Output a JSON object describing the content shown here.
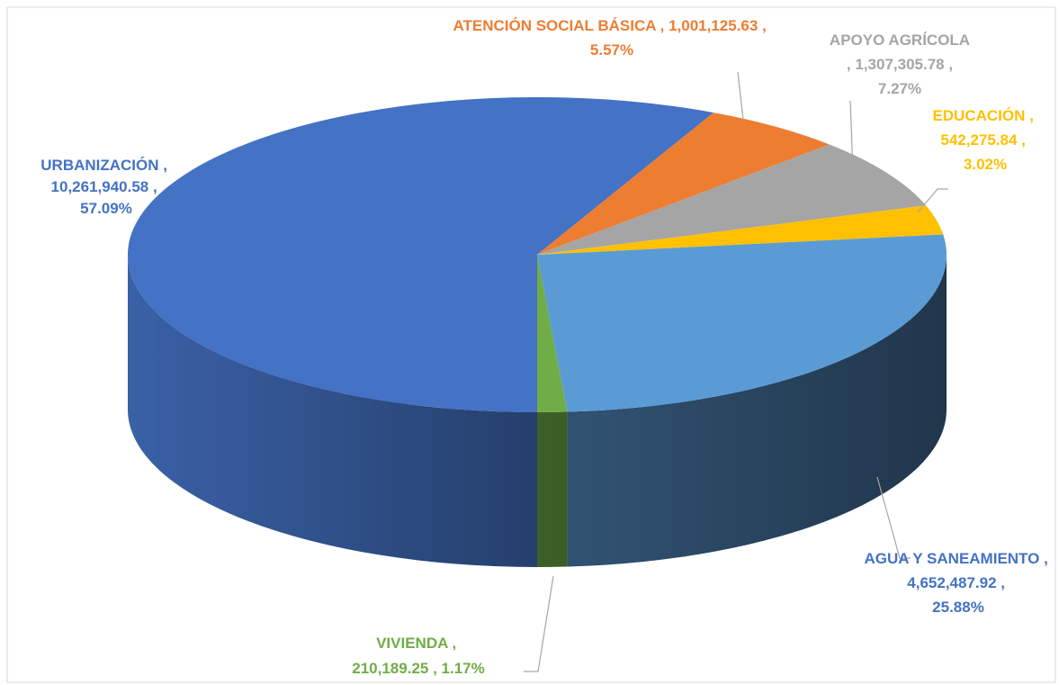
{
  "chart_data": {
    "type": "pie3d",
    "categories": [
      "URBANIZACIÓN",
      "ATENCIÓN SOCIAL BÁSICA",
      "APOYO AGRÍCOLA",
      "EDUCACIÓN",
      "AGUA Y SANEAMIENTO",
      "VIVIENDA"
    ],
    "values": [
      10261940.58,
      1001125.63,
      1307305.78,
      542275.84,
      4652487.92,
      210189.25
    ],
    "value_labels": [
      "10,261,940.58",
      "1,001,125.63",
      "1,307,305.78",
      "542,275.84",
      "4,652,487.92",
      "210,189.25"
    ],
    "percentages": [
      57.09,
      5.57,
      7.27,
      3.02,
      25.88,
      1.17
    ],
    "percent_labels": [
      "57.09%",
      "5.57%",
      "7.27%",
      "3.02%",
      "25.88%",
      "1.17%"
    ],
    "label_separator": " , ",
    "colors": [
      "#4472c4",
      "#ed7d31",
      "#a5a5a5",
      "#ffc000",
      "#5b9bd5",
      "#70ad47"
    ],
    "label_colors": [
      "#4472c4",
      "#ed7d31",
      "#a5a5a5",
      "#ffc000",
      "#4472c4",
      "#70ad47"
    ]
  }
}
